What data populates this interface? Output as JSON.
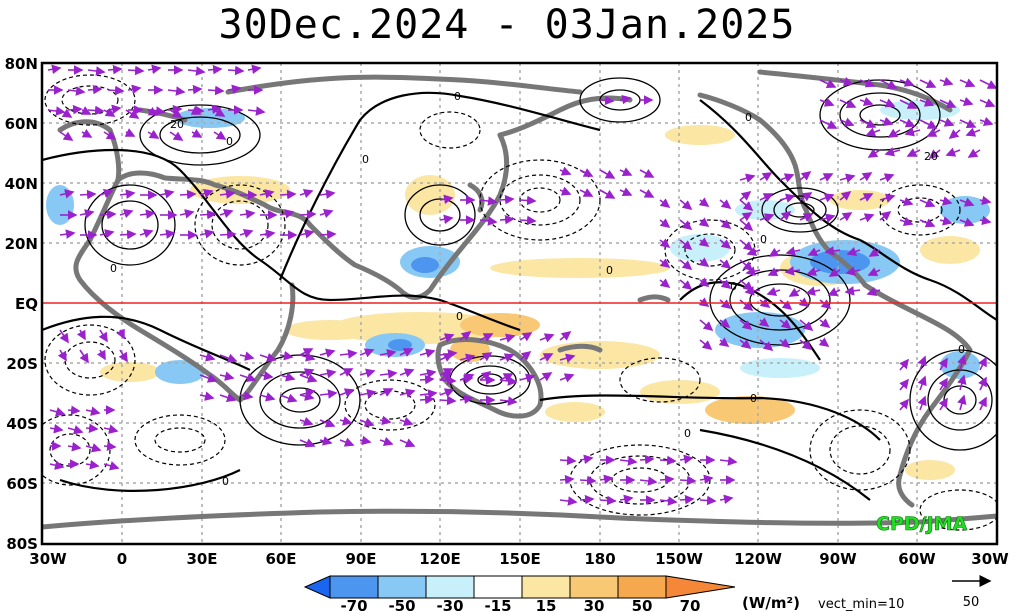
{
  "title": "30Dec.2024 - 03Jan.2025",
  "lat_labels": [
    "80N",
    "60N",
    "40N",
    "20N",
    "EQ",
    "20S",
    "40S",
    "60S",
    "80S"
  ],
  "lon_labels": [
    "30W",
    "0",
    "30E",
    "60E",
    "90E",
    "120E",
    "150E",
    "180",
    "150W",
    "120W",
    "90W",
    "60W",
    "30W"
  ],
  "contour_labels": [
    "0",
    "20"
  ],
  "colorbar": {
    "levels": [
      "-70",
      "-50",
      "-30",
      "-15",
      "15",
      "30",
      "50",
      "70"
    ],
    "colors": [
      "#1a66ee",
      "#4c96f0",
      "#87c9f4",
      "#c8f0fa",
      "#ffffff",
      "#fbe6a4",
      "#f8c874",
      "#f6a84e",
      "#f48838"
    ],
    "units": "(W/m²)",
    "vect_min_label": "vect_min=10"
  },
  "reference_vector": {
    "value_label": "50"
  },
  "credit": "CPD/JMA",
  "colors": {
    "equator": "#ee2222",
    "vector": "#9922cc",
    "coast": "#777777",
    "grid": "#aaaaaa"
  }
}
